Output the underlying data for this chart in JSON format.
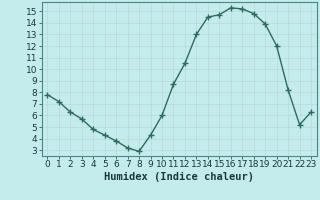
{
  "x": [
    0,
    1,
    2,
    3,
    4,
    5,
    6,
    7,
    8,
    9,
    10,
    11,
    12,
    13,
    14,
    15,
    16,
    17,
    18,
    19,
    20,
    21,
    22,
    23
  ],
  "y": [
    7.8,
    7.2,
    6.3,
    5.7,
    4.8,
    4.3,
    3.8,
    3.2,
    2.9,
    4.3,
    6.0,
    8.7,
    10.5,
    13.0,
    14.5,
    14.7,
    15.3,
    15.2,
    14.8,
    13.9,
    12.0,
    8.2,
    5.2,
    6.3
  ],
  "line_color": "#2e6b5e",
  "marker": "+",
  "marker_size": 4,
  "bg_color": "#c5ecec",
  "grid_color": "#b8d8d8",
  "xlabel": "Humidex (Indice chaleur)",
  "xlim": [
    -0.5,
    23.5
  ],
  "ylim": [
    2.5,
    15.8
  ],
  "yticks": [
    3,
    4,
    5,
    6,
    7,
    8,
    9,
    10,
    11,
    12,
    13,
    14,
    15
  ],
  "xticks": [
    0,
    1,
    2,
    3,
    4,
    5,
    6,
    7,
    8,
    9,
    10,
    11,
    12,
    13,
    14,
    15,
    16,
    17,
    18,
    19,
    20,
    21,
    22,
    23
  ],
  "tick_fontsize": 6.5,
  "xlabel_fontsize": 7.5,
  "line_width": 1.0,
  "grid_linewidth": 0.5,
  "spine_color": "#4a8888"
}
